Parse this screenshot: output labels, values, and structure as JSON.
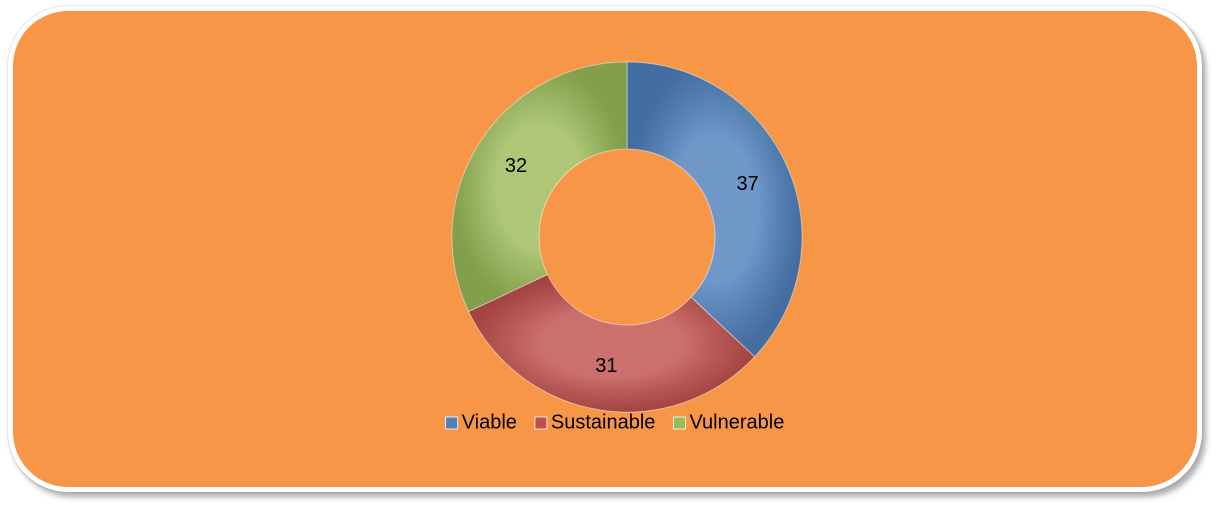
{
  "chart_data": {
    "type": "doughnut",
    "categories": [
      "Viable",
      "Sustainable",
      "Vulnerable"
    ],
    "values": [
      37,
      31,
      32
    ],
    "colors": [
      "#4f81bd",
      "#c0504d",
      "#9bbb59"
    ],
    "legend": "bottom"
  }
}
